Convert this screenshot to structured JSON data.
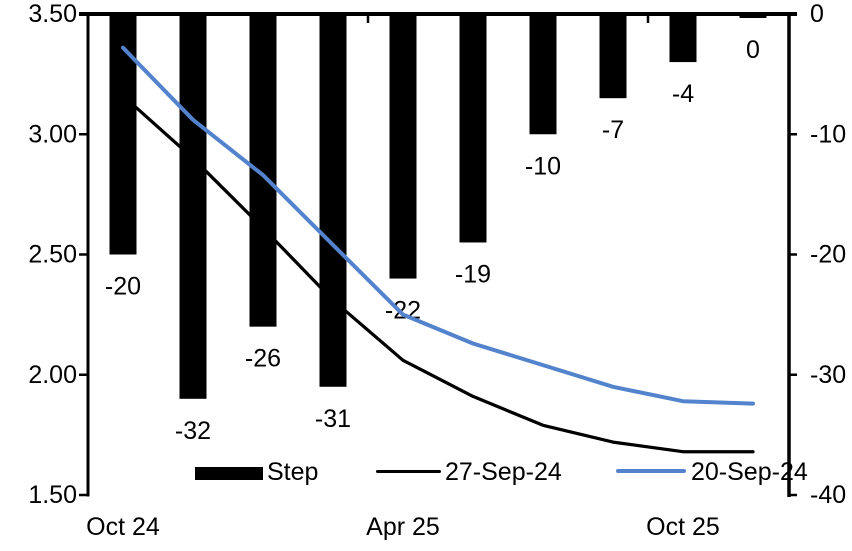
{
  "chart_data": {
    "type": "combo_bar_line",
    "title": "",
    "num_categories": 10,
    "x_axis": {
      "labels": [
        {
          "index": 0,
          "text": "Oct 24"
        },
        {
          "index": 4,
          "text": "Apr 25"
        },
        {
          "index": 8,
          "text": "Oct 25"
        }
      ]
    },
    "left_axis": {
      "min": 1.5,
      "max": 3.5,
      "tick_values": [
        3.5,
        3.0,
        2.5,
        2.0,
        1.5
      ],
      "tick_labels": [
        "3.50",
        "3.00",
        "2.50",
        "2.00",
        "1.50"
      ]
    },
    "right_axis": {
      "min": -40,
      "max": 0,
      "tick_values": [
        0,
        -10,
        -20,
        -30,
        -40
      ],
      "tick_labels": [
        "0",
        "-10",
        "-20",
        "-30",
        "-40"
      ]
    },
    "bar_series": {
      "name": "Step",
      "axis": "right",
      "color": "#000000",
      "values": [
        -20,
        -32,
        -26,
        -31,
        -22,
        -19,
        -10,
        -7,
        -4,
        0
      ],
      "value_labels": [
        "-20",
        "-32",
        "-26",
        "-31",
        "-22",
        "-19",
        "-10",
        "-7",
        "-4",
        "0"
      ]
    },
    "line_series": [
      {
        "name": "27-Sep-24",
        "axis": "left",
        "color": "#000000",
        "values": [
          3.16,
          2.9,
          2.61,
          2.31,
          2.06,
          1.91,
          1.79,
          1.72,
          1.68,
          1.68
        ]
      },
      {
        "name": "20-Sep-24",
        "axis": "left",
        "color": "#5383cd",
        "values": [
          3.36,
          3.06,
          2.83,
          2.54,
          2.25,
          2.13,
          2.04,
          1.95,
          1.89,
          1.88
        ]
      }
    ],
    "legend_position": "bottom-inside",
    "grid": "off"
  }
}
